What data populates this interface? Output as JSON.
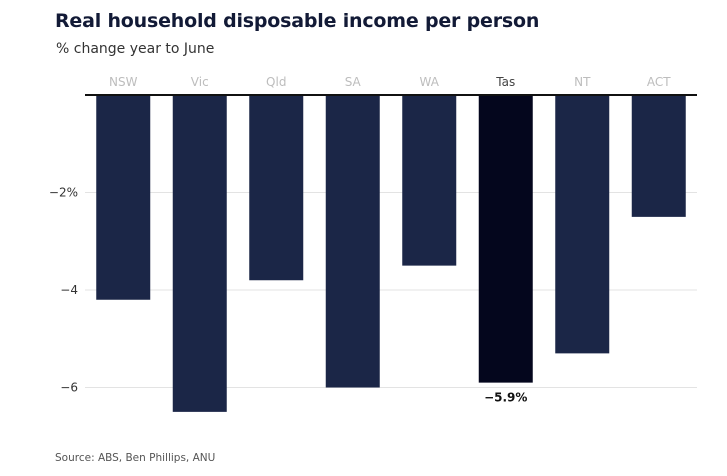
{
  "title": "Real household disposable income per person",
  "subtitle": "% change year to June",
  "source": "Source: ABS, Ben Phillips, ANU",
  "colors": {
    "bar": "#1b2647",
    "highlight": "#04061d",
    "grid": "#e3e3e3",
    "axis": "#111111"
  },
  "chart_data": {
    "type": "bar",
    "categories": [
      "NSW",
      "Vic",
      "Qld",
      "SA",
      "WA",
      "Tas",
      "NT",
      "ACT"
    ],
    "values": [
      -4.2,
      -6.5,
      -3.8,
      -6.0,
      -3.5,
      -5.9,
      -5.3,
      -2.5
    ],
    "highlight": "Tas",
    "data_labels": [
      {
        "category": "Tas",
        "text": "−5.9%"
      }
    ],
    "y_ticks": [
      {
        "value": -2,
        "label": "−2%"
      },
      {
        "value": -4,
        "label": "−4"
      },
      {
        "value": -6,
        "label": "−6"
      }
    ],
    "ylim": [
      -6.6,
      0
    ],
    "xlabel": "",
    "ylabel": "",
    "grid": true,
    "category_labels_position": "top"
  }
}
